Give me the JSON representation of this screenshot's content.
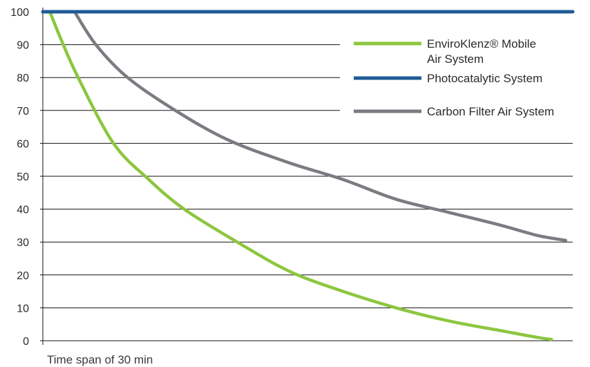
{
  "chart_data": {
    "type": "line",
    "title": "",
    "xlabel": "Time span of 30 min",
    "ylabel": "",
    "ylim": [
      0,
      100
    ],
    "yticks": [
      "0",
      "10",
      "20",
      "30",
      "40",
      "50",
      "60",
      "70",
      "80",
      "90",
      "100"
    ],
    "grid": true,
    "legend_position": "top-right",
    "x_domain": [
      0,
      30
    ],
    "series": [
      {
        "name": "EnviroKlenz® Mobile Air System",
        "legend_lines": [
          "EnviroKlenz® Mobile",
          "Air System"
        ],
        "color": "#8cc63f",
        "points": [
          [
            0.4,
            100
          ],
          [
            1,
            92
          ],
          [
            2,
            80
          ],
          [
            4,
            60
          ],
          [
            6,
            49
          ],
          [
            8,
            40
          ],
          [
            11,
            30
          ],
          [
            14,
            21
          ],
          [
            17,
            15
          ],
          [
            20,
            10
          ],
          [
            23,
            6
          ],
          [
            26,
            3
          ],
          [
            28,
            1
          ],
          [
            28.8,
            0.4
          ]
        ]
      },
      {
        "name": "Photocatalytic System",
        "legend_lines": [
          "Photocatalytic System"
        ],
        "color": "#1f5a96",
        "points": [
          [
            0,
            100
          ],
          [
            30,
            100
          ]
        ]
      },
      {
        "name": "Carbon Filter Air System",
        "legend_lines": [
          "Carbon Filter Air System"
        ],
        "color": "#7a7c82",
        "points": [
          [
            1.8,
            100
          ],
          [
            3,
            90
          ],
          [
            4.8,
            80
          ],
          [
            7.5,
            70
          ],
          [
            10.5,
            61
          ],
          [
            14,
            54
          ],
          [
            17,
            49
          ],
          [
            20,
            43
          ],
          [
            23,
            39
          ],
          [
            26,
            35
          ],
          [
            28,
            32
          ],
          [
            29.6,
            30.5
          ]
        ]
      }
    ]
  }
}
